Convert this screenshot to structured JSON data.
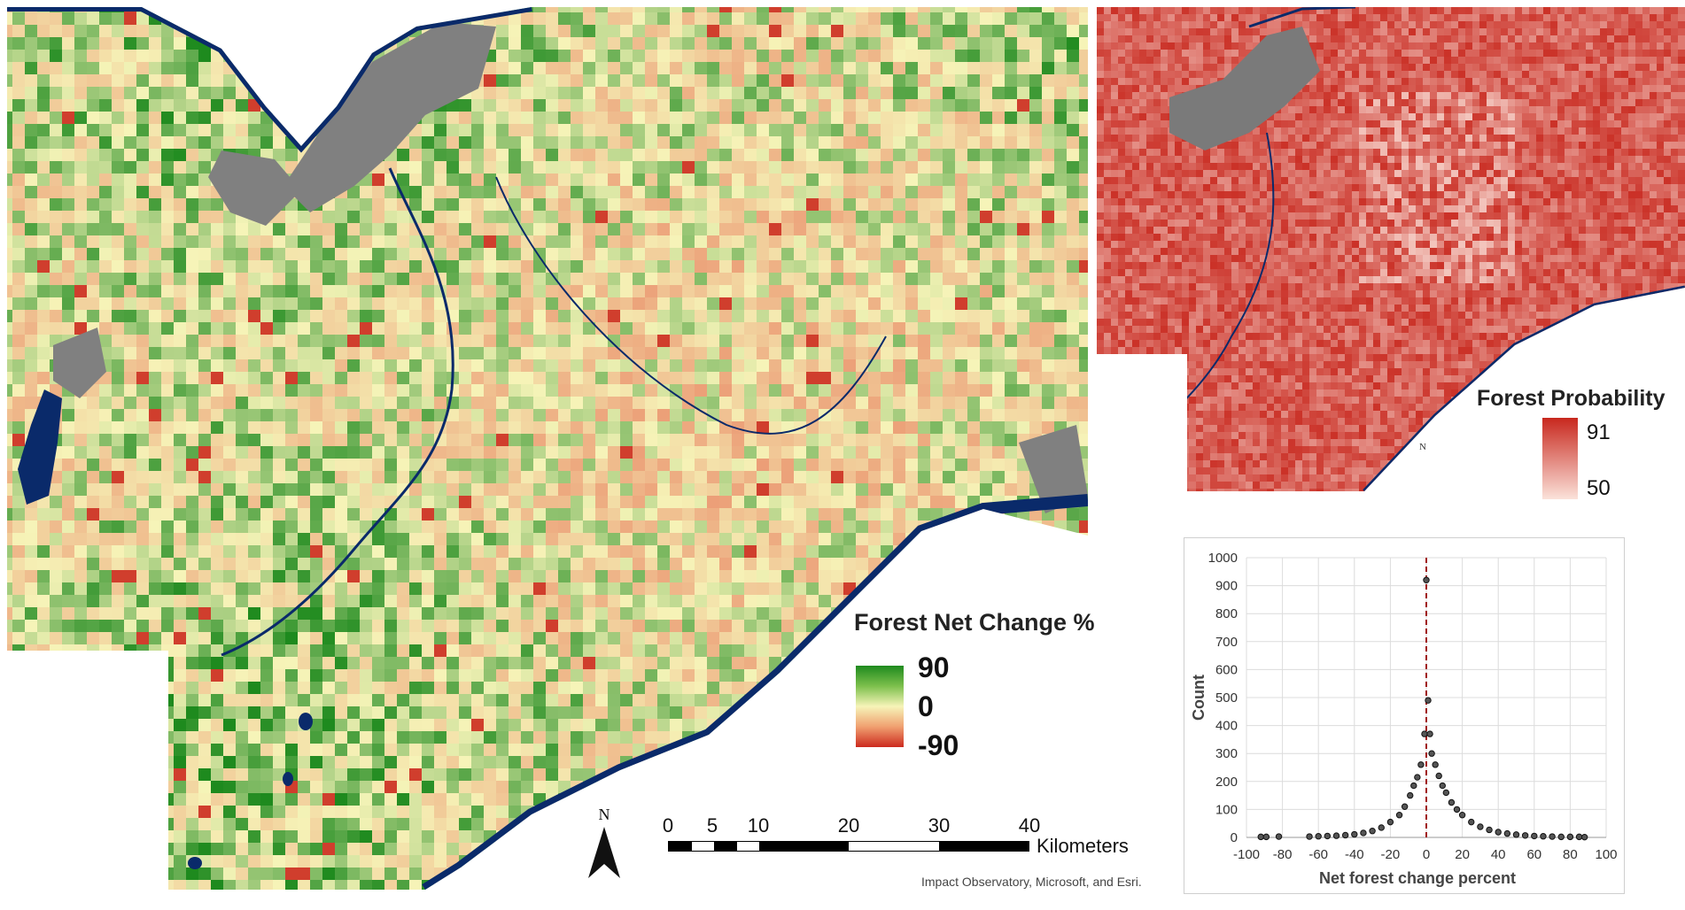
{
  "main_map": {
    "legend_title": "Forest Net Change %",
    "legend_max": "90",
    "legend_mid": "0",
    "legend_min": "-90",
    "colors": {
      "gain": "#1e8a1e",
      "neutral": "#f6f4b8",
      "loss": "#cc2a1e",
      "urban": "#808080",
      "water": "#0a2a6a"
    }
  },
  "inset_map": {
    "legend_title": "Forest Probability",
    "legend_max": "91",
    "legend_min": "50",
    "north_label": "N",
    "colors": {
      "high": "#c8281e",
      "low": "#fbe2da"
    }
  },
  "north_arrow": {
    "label": "N"
  },
  "scale_bar": {
    "ticks": [
      "0",
      "5",
      "10",
      "20",
      "30",
      "40"
    ],
    "unit": "Kilometers"
  },
  "credit": "Impact Observatory, Microsoft, and Esri.",
  "chart_data": {
    "type": "scatter",
    "xlabel": "Net forest change percent",
    "ylabel": "Count",
    "xlim": [
      -100,
      100
    ],
    "ylim": [
      0,
      1000
    ],
    "x_ticks": [
      "-100",
      "-80",
      "-60",
      "-40",
      "-20",
      "0",
      "20",
      "40",
      "60",
      "80",
      "100"
    ],
    "y_ticks": [
      "0",
      "100",
      "200",
      "300",
      "400",
      "500",
      "600",
      "700",
      "800",
      "900",
      "1000"
    ],
    "reference_line_x": 0,
    "grid": true,
    "points": [
      [
        -92,
        2
      ],
      [
        -89,
        2
      ],
      [
        -82,
        3
      ],
      [
        -65,
        3
      ],
      [
        -60,
        4
      ],
      [
        -55,
        5
      ],
      [
        -50,
        6
      ],
      [
        -45,
        8
      ],
      [
        -40,
        11
      ],
      [
        -35,
        16
      ],
      [
        -30,
        23
      ],
      [
        -25,
        35
      ],
      [
        -20,
        55
      ],
      [
        -15,
        80
      ],
      [
        -12,
        110
      ],
      [
        -9,
        150
      ],
      [
        -7,
        185
      ],
      [
        -5,
        215
      ],
      [
        -3,
        260
      ],
      [
        -1,
        370
      ],
      [
        0,
        920
      ],
      [
        1,
        490
      ],
      [
        2,
        370
      ],
      [
        3,
        300
      ],
      [
        5,
        260
      ],
      [
        7,
        220
      ],
      [
        9,
        185
      ],
      [
        11,
        160
      ],
      [
        14,
        125
      ],
      [
        17,
        100
      ],
      [
        20,
        80
      ],
      [
        25,
        55
      ],
      [
        30,
        38
      ],
      [
        35,
        27
      ],
      [
        40,
        19
      ],
      [
        45,
        14
      ],
      [
        50,
        10
      ],
      [
        55,
        7
      ],
      [
        60,
        5
      ],
      [
        65,
        4
      ],
      [
        70,
        3
      ],
      [
        75,
        2
      ],
      [
        80,
        2
      ],
      [
        85,
        2
      ],
      [
        88,
        1
      ]
    ]
  }
}
